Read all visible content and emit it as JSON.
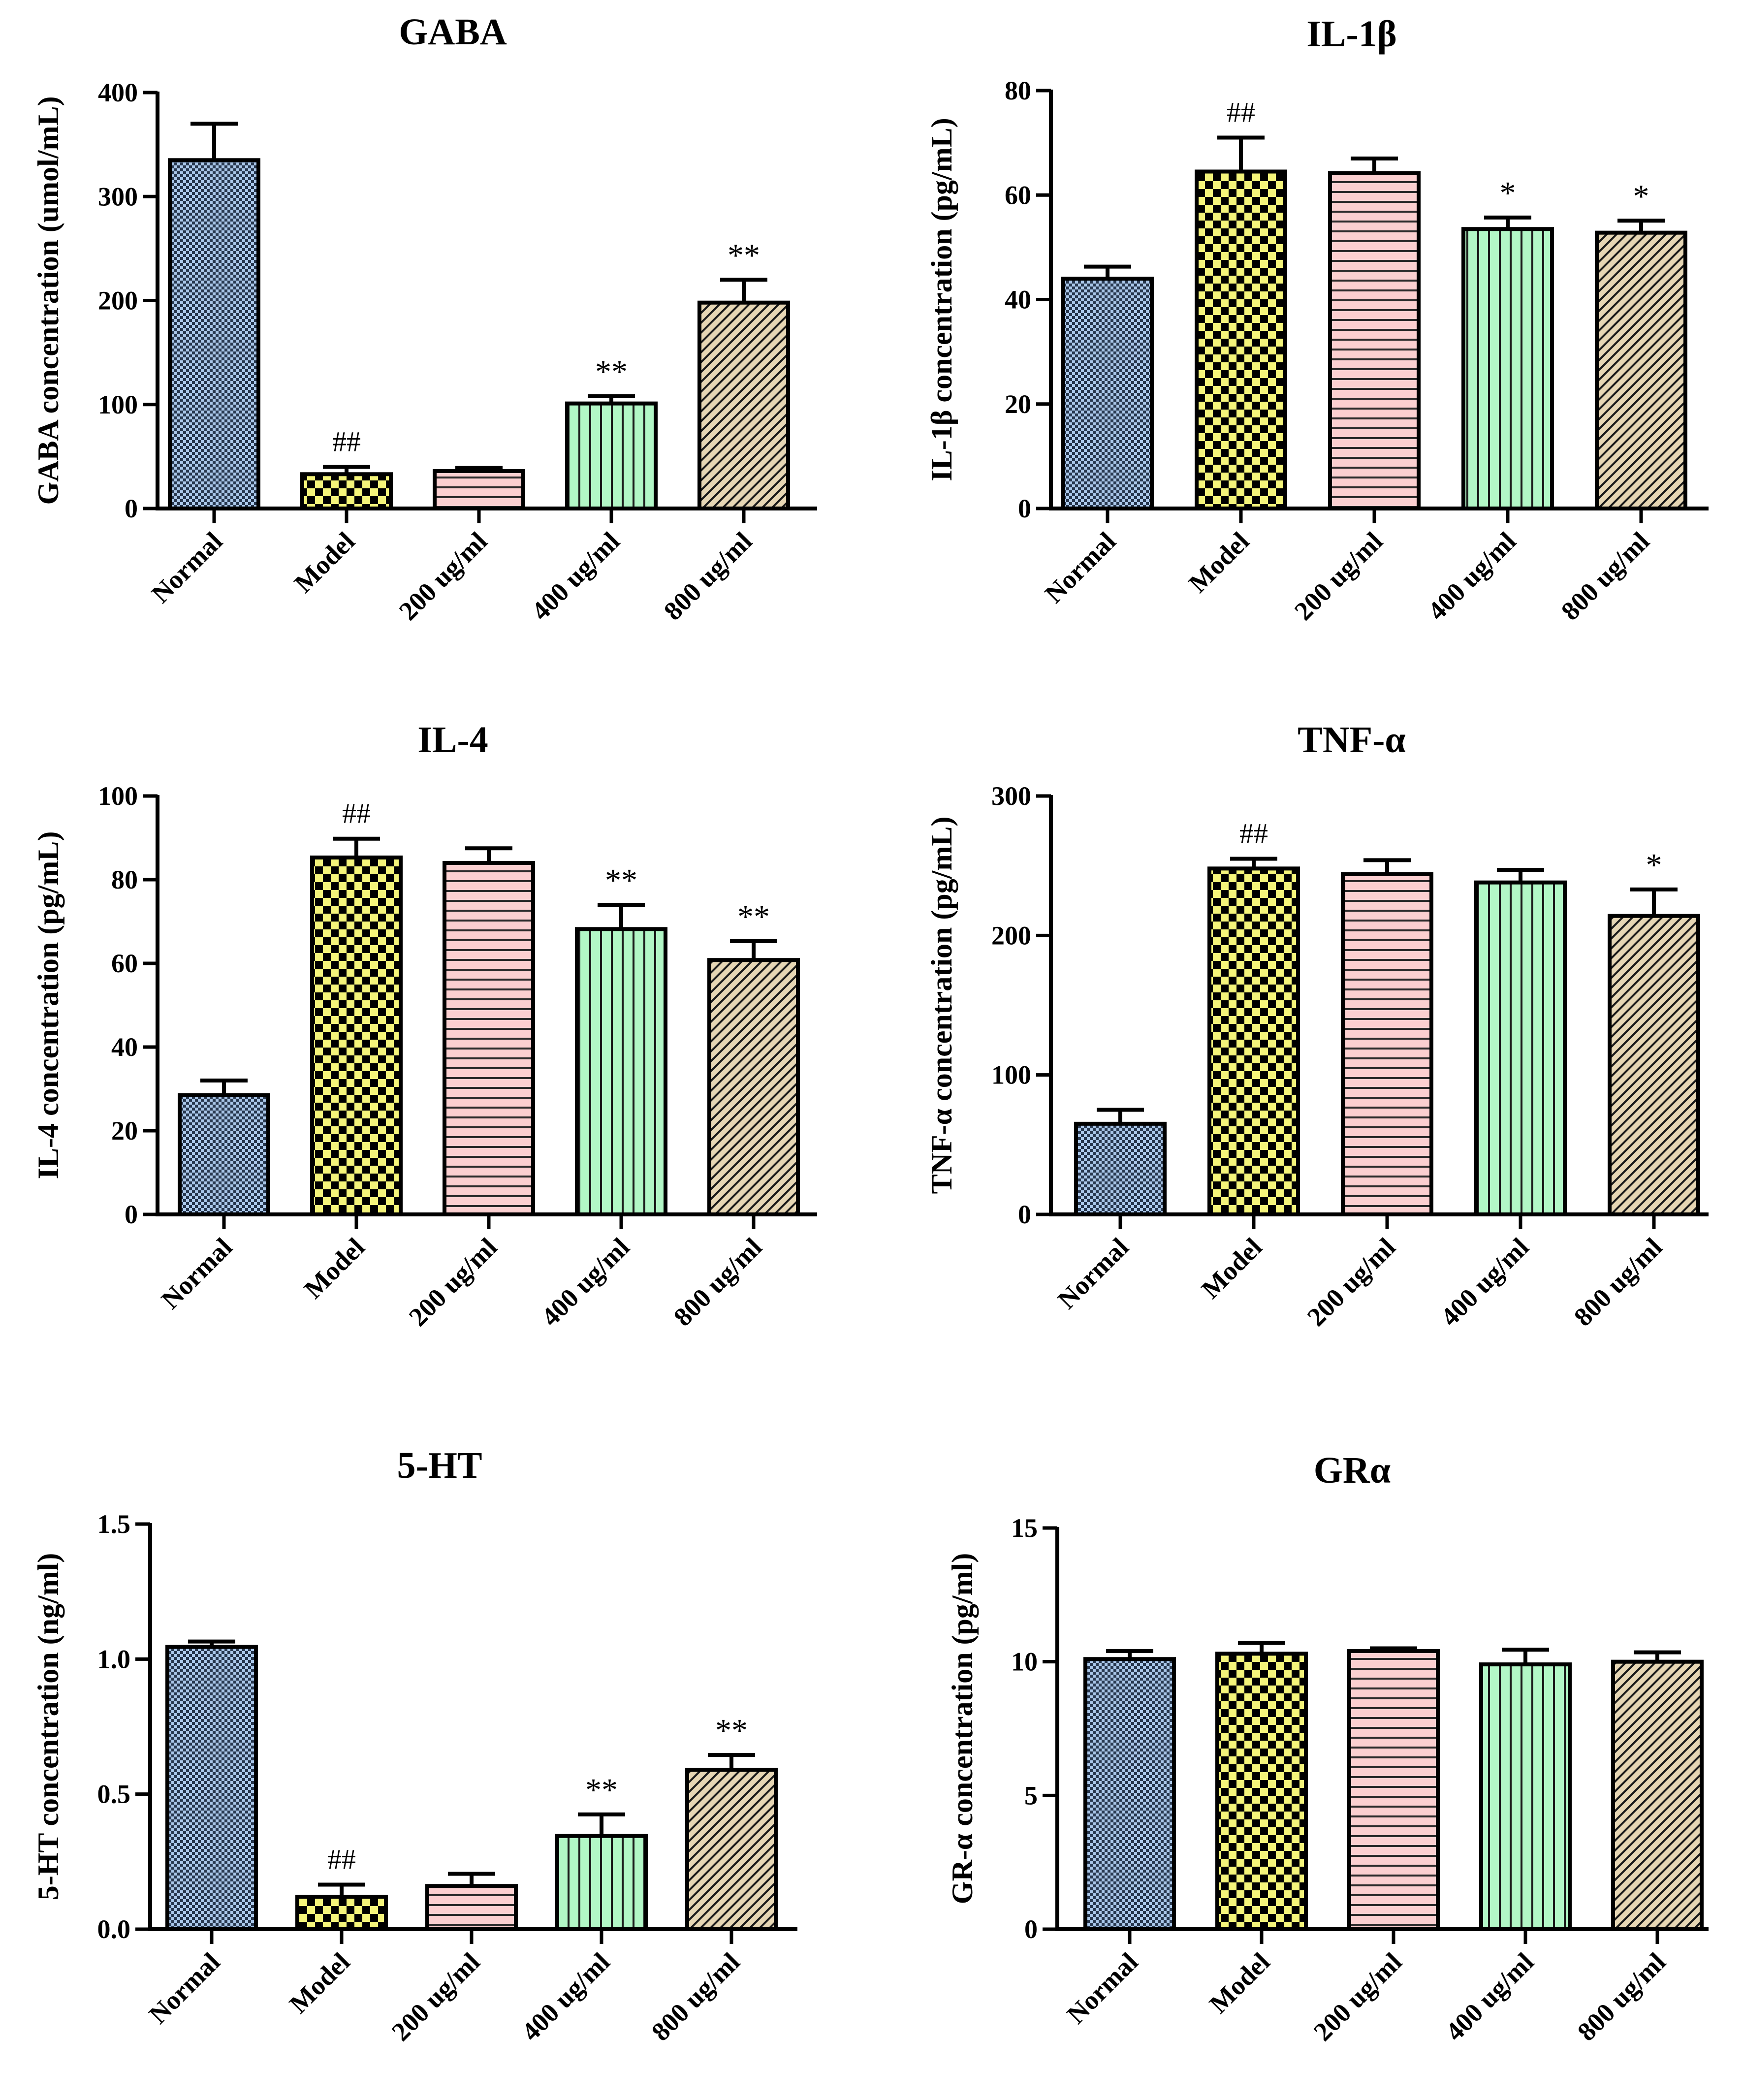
{
  "chart_data": [
    {
      "type": "bar",
      "title": "GABA",
      "ylabel": "GABA concentration (umol/mL)",
      "xlabel": "",
      "ylim": [
        0,
        400
      ],
      "yticks": [
        "0",
        "100",
        "200",
        "300",
        "400"
      ],
      "categories": [
        "Normal",
        "Model",
        "200 ug/ml",
        "400 ug/ml",
        "800 ug/ml"
      ],
      "values": [
        335,
        33,
        36,
        101,
        198
      ],
      "errors": [
        35,
        7,
        3,
        7,
        22
      ],
      "annotations": [
        "",
        "##",
        "",
        "**",
        "**"
      ]
    },
    {
      "type": "bar",
      "title": "IL-1β",
      "ylabel": "IL-1β  concentration (pg/mL)",
      "xlabel": "",
      "ylim": [
        0,
        80
      ],
      "yticks": [
        "0",
        "20",
        "40",
        "60",
        "80"
      ],
      "categories": [
        "Normal",
        "Model",
        "200 ug/ml",
        "400 ug/ml",
        "800 ug/ml"
      ],
      "values": [
        44,
        64.5,
        64.2,
        53.5,
        52.8
      ],
      "errors": [
        2.3,
        6.5,
        2.8,
        2.2,
        2.3
      ],
      "annotations": [
        "",
        "##",
        "",
        "*",
        "*"
      ]
    },
    {
      "type": "bar",
      "title": "IL-4",
      "ylabel": "IL-4 concentration (pg/mL)",
      "xlabel": "",
      "ylim": [
        0,
        100
      ],
      "yticks": [
        "0",
        "20",
        "40",
        "60",
        "80",
        "100"
      ],
      "categories": [
        "Normal",
        "Model",
        "200 ug/ml",
        "400 ug/ml",
        "800 ug/ml"
      ],
      "values": [
        28.5,
        85.3,
        84,
        68.2,
        60.8
      ],
      "errors": [
        3.5,
        4.5,
        3.5,
        5.8,
        4.5
      ],
      "annotations": [
        "",
        "##",
        "",
        "**",
        "**"
      ]
    },
    {
      "type": "bar",
      "title": "TNF-α",
      "ylabel": "TNF-α  concentration (pg/mL)",
      "xlabel": "",
      "ylim": [
        0,
        300
      ],
      "yticks": [
        "0",
        "100",
        "200",
        "300"
      ],
      "categories": [
        "Normal",
        "Model",
        "200 ug/ml",
        "400 ug/ml",
        "800 ug/ml"
      ],
      "values": [
        65,
        248,
        244,
        238,
        214
      ],
      "errors": [
        10,
        7,
        10,
        9,
        19
      ],
      "annotations": [
        "",
        "##",
        "",
        "",
        "*"
      ]
    },
    {
      "type": "bar",
      "title": "5-HT",
      "ylabel": "5-HT concentration  (ng/ml)",
      "xlabel": "",
      "ylim": [
        0,
        1.5
      ],
      "yticks": [
        "0.0",
        "0.5",
        "1.0",
        "1.5"
      ],
      "categories": [
        "Normal",
        "Model",
        "200 ug/ml",
        "400 ug/ml",
        "800 ug/ml"
      ],
      "values": [
        1.045,
        0.12,
        0.16,
        0.345,
        0.59
      ],
      "errors": [
        0.02,
        0.045,
        0.045,
        0.08,
        0.055
      ],
      "annotations": [
        "",
        "##",
        "",
        "**",
        "**"
      ]
    },
    {
      "type": "bar",
      "title": "GRα",
      "ylabel": "GR-α concentration (pg/ml)",
      "xlabel": "",
      "ylim": [
        0,
        15
      ],
      "yticks": [
        "0",
        "5",
        "10",
        "15"
      ],
      "categories": [
        "Normal",
        "Model",
        "200 ug/ml",
        "400 ug/ml",
        "800 ug/ml"
      ],
      "values": [
        10.1,
        10.3,
        10.4,
        9.9,
        10
      ],
      "errors": [
        0.3,
        0.4,
        0.1,
        0.55,
        0.35
      ],
      "annotations": [
        "",
        "",
        "",
        "",
        ""
      ]
    }
  ],
  "palette": {
    "fills": [
      "#a9c6e8",
      "#f4f47a",
      "#fbcfd0",
      "#b2f7c6",
      "#e6d6b4"
    ],
    "ink": "#000000"
  }
}
